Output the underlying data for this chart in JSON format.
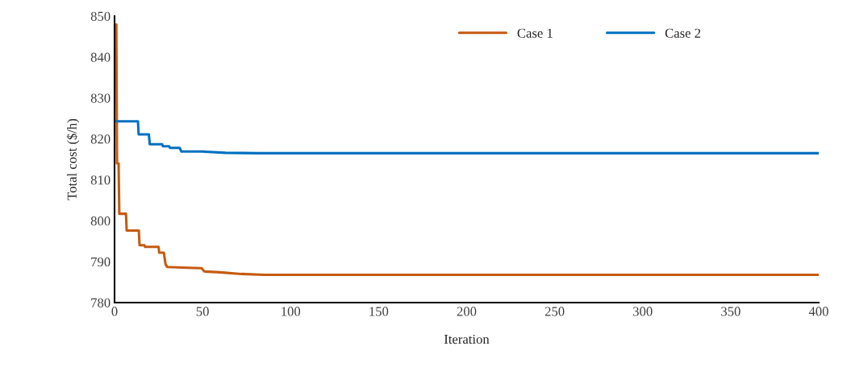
{
  "chart_data": {
    "type": "line",
    "xlabel": "Iteration",
    "ylabel": "Total cost ($/h)",
    "xlim": [
      0,
      400
    ],
    "xticks": [
      0,
      50,
      100,
      150,
      200,
      250,
      300,
      350,
      400
    ],
    "ylim": [
      780,
      850
    ],
    "yticks": [
      780,
      790,
      800,
      810,
      820,
      830,
      840,
      850
    ],
    "grid": false,
    "legend": "top right",
    "marker": "none",
    "line_style": "solid",
    "series": [
      {
        "name": "Case 1",
        "color": "#c55a11",
        "x": [
          1,
          1.4,
          2.3,
          2.7,
          6.5,
          6.9,
          13.8,
          14.2,
          17,
          17.4,
          25,
          25.4,
          28,
          29,
          30,
          42,
          49.5,
          51,
          60,
          72,
          85,
          400
        ],
        "values": [
          848,
          814,
          814,
          801.7,
          801.7,
          797.6,
          797.6,
          794,
          794,
          793.6,
          793.6,
          792.2,
          792.2,
          789.3,
          788.7,
          788.5,
          788.4,
          787.6,
          787.4,
          787,
          786.8,
          786.8
        ]
      },
      {
        "name": "Case 2",
        "color": "#0070c0",
        "x": [
          1,
          13.3,
          13.7,
          19.5,
          20,
          27,
          27.5,
          31,
          31.5,
          37,
          38,
          50,
          63,
          82,
          400
        ],
        "values": [
          824.3,
          824.3,
          821.1,
          821.1,
          818.7,
          818.7,
          818.2,
          818.2,
          817.8,
          817.8,
          816.9,
          816.9,
          816.6,
          816.5,
          816.5
        ]
      }
    ]
  }
}
